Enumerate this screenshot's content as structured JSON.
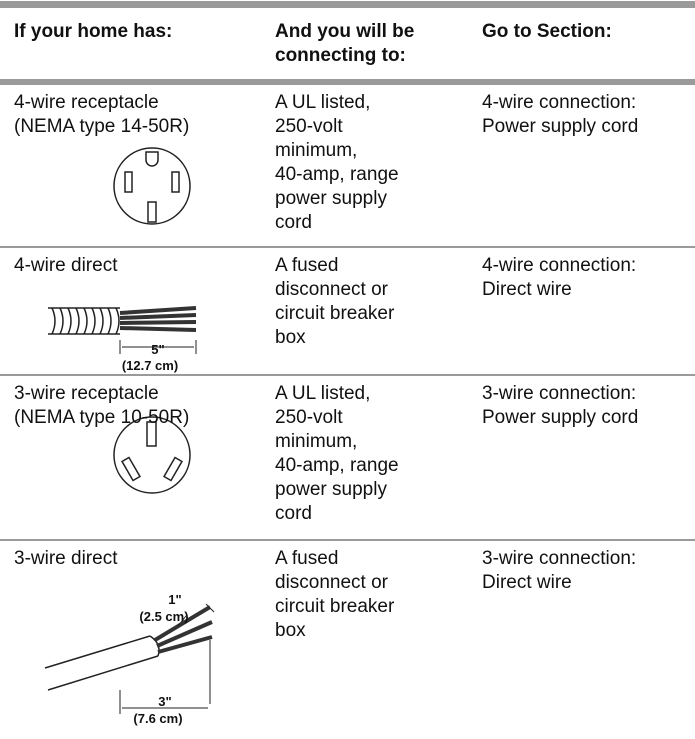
{
  "table": {
    "header": [
      [
        "If your home has:"
      ],
      [
        "And you will be",
        "connecting to:"
      ],
      [
        "Go to Section:"
      ]
    ],
    "rows": [
      {
        "cells": [
          [
            "4-wire receptacle",
            "(NEMA type 14-50R)"
          ],
          [
            "A UL listed,",
            "250-volt",
            "minimum,",
            "40-amp, range",
            "power supply",
            "cord"
          ],
          [
            "4-wire connection:",
            "Power supply cord"
          ]
        ]
      },
      {
        "cells": [
          [
            "4-wire direct"
          ],
          [
            "A fused",
            "disconnect or",
            "circuit breaker",
            "box"
          ],
          [
            "4-wire connection:",
            "Direct wire"
          ]
        ],
        "figure_labels": [
          "5\"",
          "(12.7 cm)"
        ]
      },
      {
        "cells": [
          [
            "3-wire receptacle",
            "(NEMA type 10-50R)"
          ],
          [
            "A UL listed,",
            "250-volt",
            "minimum,",
            "40-amp, range",
            "power supply",
            "cord"
          ],
          [
            "3-wire connection:",
            "Power supply cord"
          ]
        ]
      },
      {
        "cells": [
          [
            "3-wire direct"
          ],
          [
            "A fused",
            "disconnect or",
            "circuit breaker",
            "box"
          ],
          [
            "3-wire connection:",
            "Direct wire"
          ]
        ],
        "figure_labels": [
          "1\"",
          "(2.5 cm)",
          "3\"",
          "(7.6 cm)"
        ]
      }
    ]
  }
}
